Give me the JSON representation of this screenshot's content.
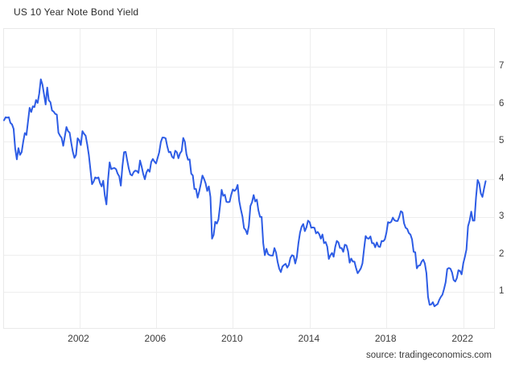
{
  "title": "US 10 Year Note Bond Yield",
  "source": "source: tradingeconomics.com",
  "colors": {
    "line": "#2d5ce5",
    "grid": "#eeeeee",
    "border": "#e9e9e9",
    "text": "#3c3c3c",
    "title_text": "#2b2b2b",
    "background": "#ffffff"
  },
  "chart_data": {
    "type": "line",
    "title": "US 10 Year Note Bond Yield",
    "xlabel": "",
    "ylabel": "",
    "x_ticks": [
      2002,
      2006,
      2010,
      2014,
      2018,
      2022
    ],
    "y_ticks": [
      1,
      2,
      3,
      4,
      5,
      6,
      7
    ],
    "x_range": [
      1998.083,
      2023.69
    ],
    "y_range": [
      0,
      8
    ],
    "grid": true,
    "legend": false,
    "frequency": "monthly",
    "series": [
      {
        "name": "US 10 Year Note Bond Yield",
        "unit": "percent",
        "start_year": 1998,
        "start_month": 2,
        "values": [
          5.57,
          5.65,
          5.64,
          5.65,
          5.5,
          5.46,
          5.34,
          4.81,
          4.53,
          4.83,
          4.65,
          4.72,
          5.0,
          5.23,
          5.18,
          5.54,
          5.9,
          5.79,
          5.94,
          5.92,
          6.11,
          6.03,
          6.28,
          6.66,
          6.52,
          6.26,
          5.99,
          6.44,
          6.1,
          6.05,
          5.83,
          5.8,
          5.74,
          5.72,
          5.24,
          5.16,
          5.1,
          4.89,
          5.14,
          5.39,
          5.28,
          5.24,
          4.97,
          4.73,
          4.57,
          4.65,
          5.09,
          5.04,
          4.91,
          5.28,
          5.21,
          5.16,
          4.93,
          4.65,
          4.26,
          3.87,
          3.94,
          4.05,
          4.03,
          4.05,
          3.9,
          3.81,
          3.96,
          3.57,
          3.33,
          3.98,
          4.45,
          4.27,
          4.29,
          4.3,
          4.27,
          4.15,
          4.08,
          3.83,
          4.35,
          4.72,
          4.73,
          4.5,
          4.28,
          4.13,
          4.1,
          4.19,
          4.23,
          4.22,
          4.17,
          4.5,
          4.34,
          4.14,
          4.0,
          4.18,
          4.26,
          4.2,
          4.46,
          4.54,
          4.47,
          4.42,
          4.57,
          4.72,
          4.99,
          5.11,
          5.11,
          5.09,
          4.88,
          4.72,
          4.73,
          4.6,
          4.56,
          4.76,
          4.72,
          4.56,
          4.69,
          4.75,
          5.1,
          5.0,
          4.67,
          4.52,
          4.53,
          4.15,
          4.1,
          3.74,
          3.74,
          3.51,
          3.68,
          3.88,
          4.1,
          4.01,
          3.89,
          3.69,
          3.81,
          3.53,
          2.42,
          2.52,
          2.87,
          2.82,
          2.93,
          3.29,
          3.72,
          3.56,
          3.59,
          3.4,
          3.39,
          3.4,
          3.59,
          3.73,
          3.69,
          3.73,
          3.85,
          3.42,
          3.2,
          3.01,
          2.7,
          2.65,
          2.54,
          2.76,
          3.29,
          3.39,
          3.58,
          3.41,
          3.46,
          3.17,
          3.0,
          3.0,
          2.3,
          1.98,
          2.15,
          2.01,
          1.98,
          1.97,
          1.97,
          2.17,
          2.05,
          1.8,
          1.62,
          1.53,
          1.68,
          1.72,
          1.75,
          1.65,
          1.72,
          1.91,
          1.98,
          1.96,
          1.76,
          1.93,
          2.3,
          2.58,
          2.74,
          2.81,
          2.62,
          2.72,
          2.9,
          2.86,
          2.71,
          2.72,
          2.71,
          2.56,
          2.6,
          2.54,
          2.42,
          2.53,
          2.3,
          2.33,
          2.21,
          1.88,
          1.98,
          2.04,
          1.94,
          2.2,
          2.36,
          2.32,
          2.17,
          2.17,
          2.07,
          2.26,
          2.24,
          2.09,
          1.78,
          1.89,
          1.81,
          1.81,
          1.64,
          1.5,
          1.56,
          1.63,
          1.76,
          2.14,
          2.49,
          2.43,
          2.42,
          2.48,
          2.3,
          2.3,
          2.19,
          2.32,
          2.21,
          2.2,
          2.36,
          2.35,
          2.4,
          2.58,
          2.86,
          2.84,
          2.87,
          2.98,
          2.91,
          2.89,
          2.89,
          3.0,
          3.15,
          3.12,
          2.83,
          2.71,
          2.68,
          2.57,
          2.53,
          2.4,
          2.07,
          2.06,
          1.63,
          1.7,
          1.71,
          1.81,
          1.86,
          1.76,
          1.5,
          0.87,
          0.66,
          0.67,
          0.73,
          0.62,
          0.65,
          0.68,
          0.79,
          0.87,
          0.93,
          1.08,
          1.26,
          1.61,
          1.64,
          1.62,
          1.52,
          1.32,
          1.28,
          1.37,
          1.58,
          1.56,
          1.47,
          1.76,
          1.93,
          2.13,
          2.75,
          2.9,
          3.14,
          2.9,
          2.9,
          3.52,
          3.98,
          3.89,
          3.62,
          3.53,
          3.75,
          3.95
        ]
      }
    ]
  }
}
